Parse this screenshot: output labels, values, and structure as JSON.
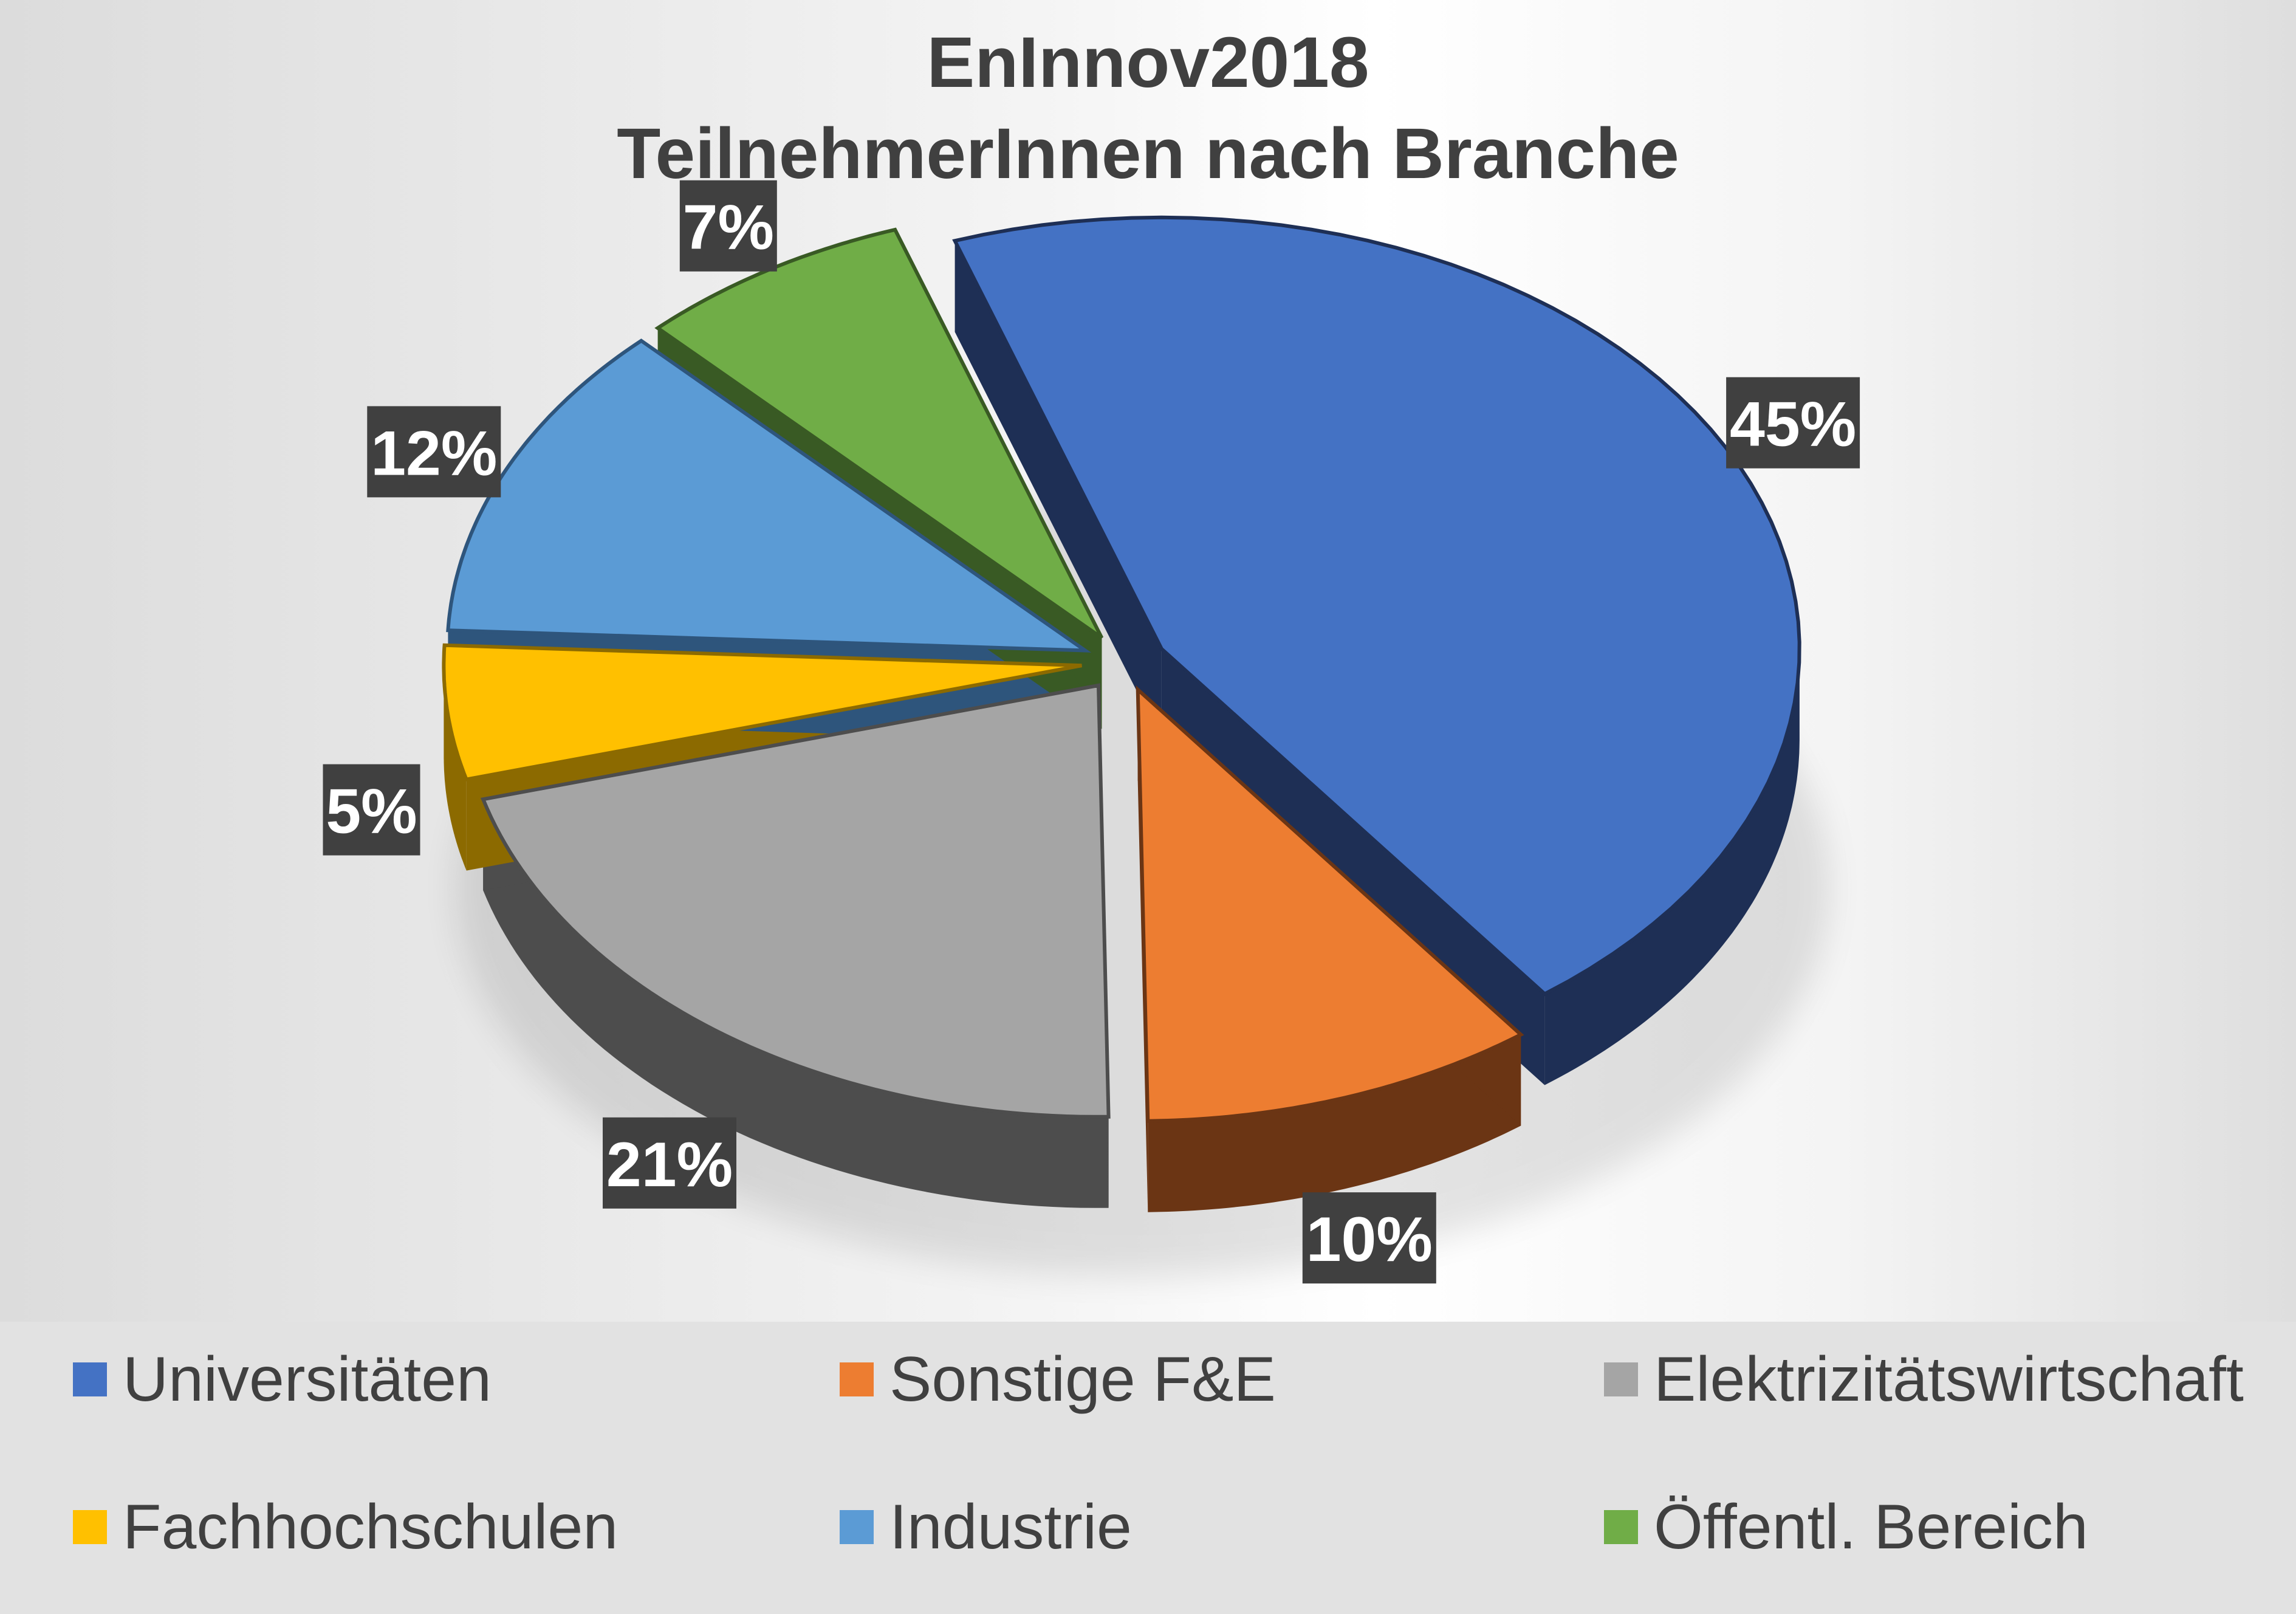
{
  "chart": {
    "title_line1": "EnInnov2018",
    "title_line2": "TeilnehmerInnen nach Branche"
  },
  "chart_data": {
    "type": "pie",
    "title": "EnInnov2018 TeilnehmerInnen nach Branche",
    "exploded": true,
    "three_d": true,
    "legend_position": "bottom",
    "categories": [
      "Universitäten",
      "Sonstige F&E",
      "Elektrizitätswirtschaft",
      "Fachhochschulen",
      "Industrie",
      "Öffentl. Bereich"
    ],
    "values": [
      45,
      10,
      21,
      5,
      12,
      7
    ],
    "labels": [
      "45%",
      "10%",
      "21%",
      "5%",
      "12%",
      "7%"
    ],
    "colors": [
      "#4472C4",
      "#ED7D31",
      "#A5A5A5",
      "#FFC000",
      "#5B9BD5",
      "#70AD47"
    ],
    "side_colors": [
      "#1E2F55",
      "#6B3514",
      "#4D4D4D",
      "#8C6A00",
      "#2E557C",
      "#395A24"
    ],
    "label_style": {
      "background": "#404040",
      "text": "#FFFFFF"
    }
  },
  "legend": {
    "items": [
      {
        "label": "Universitäten",
        "color": "#4472C4"
      },
      {
        "label": "Sonstige F&E",
        "color": "#ED7D31"
      },
      {
        "label": "Elektrizitätswirtschaft",
        "color": "#A5A5A5"
      },
      {
        "label": "Fachhochschulen",
        "color": "#FFC000"
      },
      {
        "label": "Industrie",
        "color": "#5B9BD5"
      },
      {
        "label": "Öffentl. Bereich",
        "color": "#70AD47"
      }
    ]
  }
}
